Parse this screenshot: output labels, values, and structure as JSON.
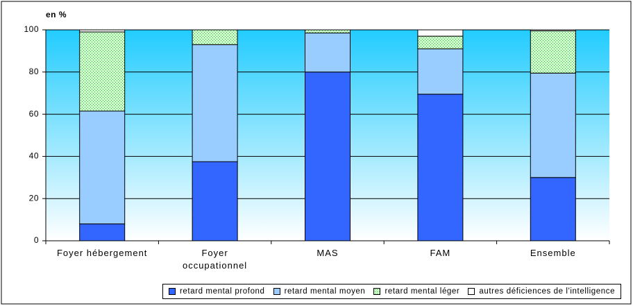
{
  "chart_data": {
    "type": "stacked_bar",
    "y_label": "en %",
    "categories": [
      "Foyer hébergement",
      "Foyer\noccupationnel",
      "MAS",
      "FAM",
      "Ensemble"
    ],
    "series": [
      {
        "name": "retard mental profond",
        "color": "#3366ff",
        "values": [
          8,
          37.5,
          80,
          69.5,
          30
        ]
      },
      {
        "name": "retard mental moyen",
        "color": "#99ccff",
        "values": [
          53.5,
          55.5,
          18.5,
          21.5,
          49.5
        ]
      },
      {
        "name": "retard mental léger",
        "color": "#ccffcc",
        "pattern": "dots",
        "values": [
          37.5,
          7,
          1.5,
          6,
          20
        ]
      },
      {
        "name": "autres déficiences de l'intelligence",
        "color": "#ffffff",
        "values": [
          1,
          0,
          0,
          3,
          0.5
        ]
      }
    ],
    "ylim": [
      0,
      100
    ],
    "yticks": [
      0,
      20,
      40,
      60,
      80,
      100
    ],
    "grid": true
  }
}
